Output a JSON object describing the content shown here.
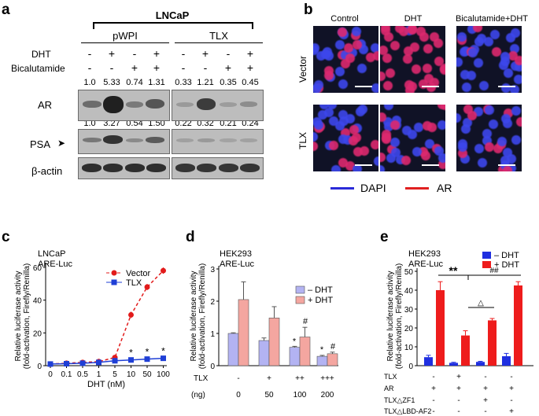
{
  "panel_a": {
    "label": "a",
    "cell_line": "LNCaP",
    "groups": [
      "pWPI",
      "TLX"
    ],
    "rows": [
      {
        "name": "DHT",
        "signs": [
          "-",
          "+",
          "-",
          "+",
          "-",
          "+",
          "-",
          "+"
        ]
      },
      {
        "name": "Bicalutamide",
        "signs": [
          "-",
          "-",
          "+",
          "+",
          "-",
          "-",
          "+",
          "+"
        ]
      }
    ],
    "ar_values": [
      "1.0",
      "5.33",
      "0.74",
      "1.31",
      "0.33",
      "1.21",
      "0.35",
      "0.45"
    ],
    "psa_values": [
      "1.0",
      "3.27",
      "0.54",
      "1.50",
      "0.22",
      "0.32",
      "0.21",
      "0.24"
    ],
    "blot_labels": [
      "AR",
      "PSA",
      "β-actin"
    ]
  },
  "panel_b": {
    "label": "b",
    "columns": [
      "Control",
      "DHT",
      "Bicalutamide+DHT"
    ],
    "rows": [
      "Vector",
      "TLX"
    ],
    "legend": [
      {
        "name": "DAPI",
        "color": "#2a2ad8"
      },
      {
        "name": "AR",
        "color": "#e02020"
      }
    ]
  },
  "chart_data": [
    {
      "type": "line",
      "panel": "c",
      "annotation": [
        "LNCaP",
        "ARE-Luc"
      ],
      "xlabel": "DHT (nM)",
      "ylabel": [
        "Relative luciferase activity",
        "(fold-activation, Firefly/Renilla)"
      ],
      "categories": [
        "0",
        "0.1",
        "0.5",
        "1",
        "5",
        "10",
        "50",
        "100"
      ],
      "series": [
        {
          "name": "Vector",
          "color": "#e21b1b",
          "values": [
            1,
            1.5,
            2,
            2.5,
            5,
            31,
            48,
            58
          ]
        },
        {
          "name": "TLX",
          "color": "#1f3fd6",
          "values": [
            1,
            1.2,
            1.5,
            2,
            3,
            3.5,
            4,
            4.5
          ]
        }
      ],
      "ylim": [
        0,
        60
      ],
      "star_labels": [
        "*",
        "*",
        "*"
      ],
      "legend_position": "top-right"
    },
    {
      "type": "bar",
      "panel": "d",
      "annotation": [
        "HEK293",
        "ARE-Luc"
      ],
      "ylabel": [
        "Relative luciferase activity",
        "(fold-activation, Firefly/Renilla)"
      ],
      "row_labels": [
        "TLX",
        "(ng)"
      ],
      "tlx_signs": [
        "-",
        "+",
        "++",
        "+++"
      ],
      "categories": [
        "0",
        "50",
        "100",
        "200"
      ],
      "series": [
        {
          "name": "– DHT",
          "color": "#b3b3f2",
          "values": [
            1.0,
            0.78,
            0.57,
            0.29
          ]
        },
        {
          "name": "+ DHT",
          "color": "#f4a6a0",
          "values": [
            2.05,
            1.48,
            0.89,
            0.37
          ]
        }
      ],
      "ylim": [
        0,
        3
      ],
      "markers": [
        "*",
        "#",
        "*",
        "#"
      ],
      "legend_position": "top-right"
    },
    {
      "type": "bar",
      "panel": "e",
      "annotation": [
        "HEK293",
        "ARE-Luc"
      ],
      "ylabel": [
        "Relative luciferase activity",
        "(fold-activation, Firefly/Renilla)"
      ],
      "series": [
        {
          "name": "– DHT",
          "color": "#1f2fe0",
          "values": [
            4.5,
            1.5,
            2,
            5
          ]
        },
        {
          "name": "+ DHT",
          "color": "#ee1c1c",
          "values": [
            40,
            16,
            24,
            42.5
          ]
        }
      ],
      "ylim": [
        0,
        50
      ],
      "row_labels": [
        "TLX",
        "AR",
        "TLX△ZF1",
        "TLX△LBD-AF2"
      ],
      "row_signs": [
        [
          "-",
          "+",
          "-",
          "-"
        ],
        [
          "+",
          "+",
          "+",
          "+"
        ],
        [
          "-",
          "-",
          "+",
          "-"
        ],
        [
          "-",
          "-",
          "-",
          "+"
        ]
      ],
      "markers": [
        "**",
        "##",
        "△"
      ],
      "legend_position": "top-right"
    }
  ]
}
